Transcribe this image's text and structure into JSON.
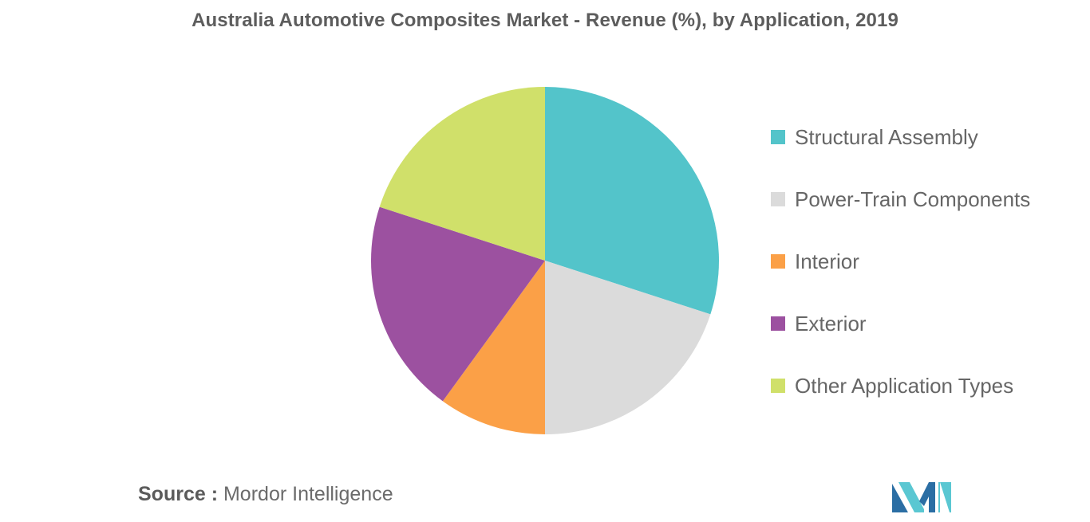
{
  "chart_data": {
    "type": "pie",
    "title": "Australia Automotive Composites Market - Revenue (%), by Application, 2019",
    "slices": [
      {
        "label": "Structural Assembly",
        "value": 30,
        "color": "#53c4ca"
      },
      {
        "label": "Power-Train Components",
        "value": 20,
        "color": "#dbdbdb"
      },
      {
        "label": "Interior",
        "value": 10,
        "color": "#fba047"
      },
      {
        "label": "Exterior",
        "value": 20,
        "color": "#9c51a0"
      },
      {
        "label": "Other Application Types",
        "value": 20,
        "color": "#d0e06a"
      }
    ],
    "start_angle_deg": 0,
    "direction": "clockwise",
    "legend_position": "right"
  },
  "source": {
    "key": "Source :",
    "value": "Mordor Intelligence"
  },
  "logo": {
    "icon": "mordor-intelligence-logo-icon",
    "colors": [
      "#2b6ea4",
      "#5ac7d2"
    ]
  }
}
